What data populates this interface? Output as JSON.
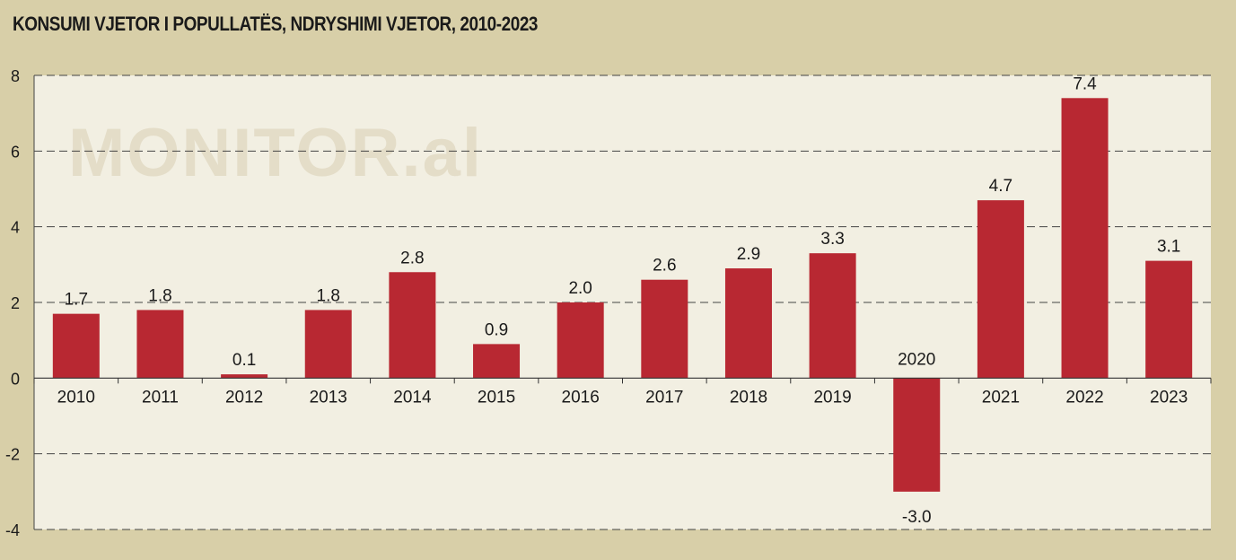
{
  "title": "KONSUMI VJETOR I POPULLATËS, NDRYSHIMI VJETOR, 2010-2023",
  "watermark": "MONITOR.al",
  "colors": {
    "background": "#d8cfa8",
    "plot_background": "#f2efe2",
    "bar": "#b82832",
    "watermark": "#e4ddc8"
  },
  "chart_data": {
    "type": "bar",
    "title": "KONSUMI VJETOR I POPULLATËS, NDRYSHIMI VJETOR, 2010-2023",
    "xlabel": "",
    "ylabel": "",
    "categories": [
      "2010",
      "2011",
      "2012",
      "2013",
      "2014",
      "2015",
      "2016",
      "2017",
      "2018",
      "2019",
      "2020",
      "2021",
      "2022",
      "2023"
    ],
    "values": [
      1.7,
      1.8,
      0.1,
      1.8,
      2.8,
      0.9,
      2.0,
      2.6,
      2.9,
      3.3,
      -3.0,
      4.7,
      7.4,
      3.1
    ],
    "value_labels": [
      "1.7",
      "1.8",
      "0.1",
      "1.8",
      "2.8",
      "0.9",
      "2.0",
      "2.6",
      "2.9",
      "3.3",
      "-3.0",
      "4.7",
      "7.4",
      "3.1"
    ],
    "ylim": [
      -4,
      8
    ],
    "yticks": [
      -4,
      -2,
      0,
      2,
      4,
      6,
      8
    ],
    "ytick_labels": [
      "-4",
      "-2",
      "0",
      "2",
      "4",
      "6",
      "8"
    ],
    "grid": true,
    "legend": false
  }
}
